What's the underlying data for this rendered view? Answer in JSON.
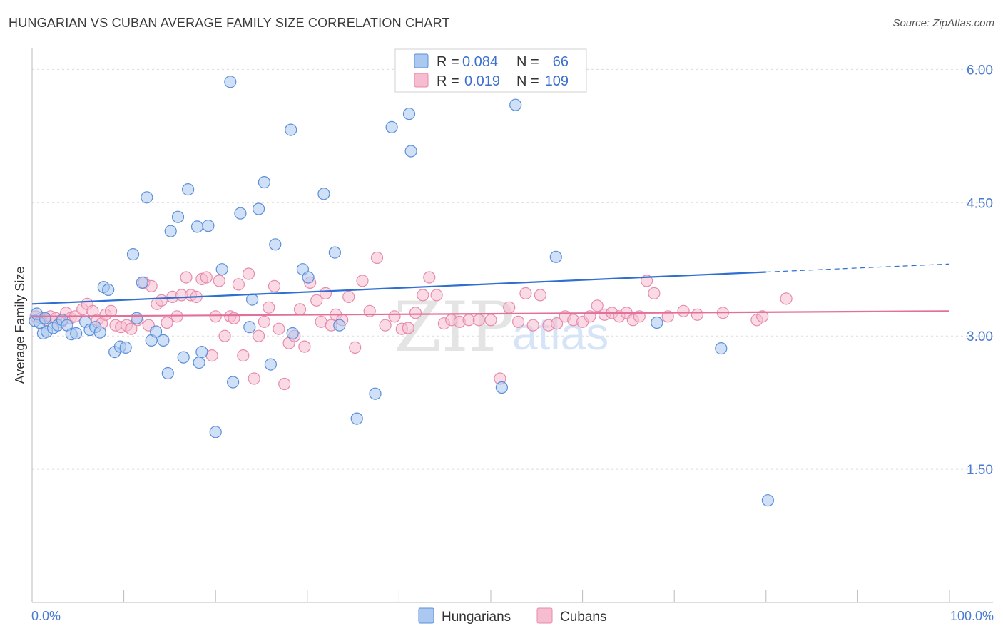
{
  "title": "HUNGARIAN VS CUBAN AVERAGE FAMILY SIZE CORRELATION CHART",
  "source": "Source: ZipAtlas.com",
  "watermark": {
    "zip": "ZIP",
    "atlas": "atlas"
  },
  "colors": {
    "hungarian_fill": "#aac8f0",
    "hungarian_stroke": "#5b8fd9",
    "hungarian_line": "#2f6fd1",
    "cuban_fill": "#f6bdd0",
    "cuban_stroke": "#e88aab",
    "cuban_line": "#e2709a",
    "tick_label": "#4a7bd0"
  },
  "legend": {
    "r_label": "R =",
    "n_label": "N =",
    "hungarian": {
      "r": "0.084",
      "n": "66"
    },
    "cuban": {
      "r": "0.019",
      "n": "109"
    }
  },
  "bottom_legend": {
    "hungarians": "Hungarians",
    "cubans": "Cubans"
  },
  "chart_data": {
    "type": "scatter",
    "title": "HUNGARIAN VS CUBAN AVERAGE FAMILY SIZE CORRELATION CHART",
    "xlabel": "",
    "ylabel": "Average Family Size",
    "xlim": [
      0,
      100
    ],
    "ylim": [
      0.0,
      6.3
    ],
    "x_tick_labels": {
      "min": "0.0%",
      "max": "100.0%"
    },
    "y_ticks": [
      {
        "value": 1.5,
        "label": "1.50"
      },
      {
        "value": 3.0,
        "label": "3.00"
      },
      {
        "value": 4.5,
        "label": "4.50"
      },
      {
        "value": 6.0,
        "label": "6.00"
      }
    ],
    "series": [
      {
        "name": "Hungarians",
        "r": 0.084,
        "n": 66,
        "trend": {
          "x0": 0,
          "y0": 3.36,
          "x1": 80,
          "y1": 3.72,
          "dash_to_x": 100,
          "dash_to_y": 3.81
        },
        "points": [
          [
            0.3,
            3.17
          ],
          [
            0.8,
            3.15
          ],
          [
            1.2,
            3.03
          ],
          [
            1.6,
            3.05
          ],
          [
            2.3,
            3.09
          ],
          [
            2.8,
            3.12
          ],
          [
            3.3,
            3.18
          ],
          [
            3.8,
            3.12
          ],
          [
            4.3,
            3.02
          ],
          [
            4.8,
            3.03
          ],
          [
            5.8,
            3.16
          ],
          [
            6.3,
            3.07
          ],
          [
            6.9,
            3.1
          ],
          [
            7.4,
            3.04
          ],
          [
            7.8,
            3.55
          ],
          [
            8.3,
            3.52
          ],
          [
            9.0,
            2.82
          ],
          [
            9.6,
            2.88
          ],
          [
            10.2,
            2.87
          ],
          [
            11.0,
            3.92
          ],
          [
            11.4,
            3.2
          ],
          [
            12.0,
            3.6
          ],
          [
            12.5,
            4.56
          ],
          [
            13.0,
            2.95
          ],
          [
            13.5,
            3.05
          ],
          [
            14.3,
            2.95
          ],
          [
            14.8,
            2.58
          ],
          [
            15.1,
            4.18
          ],
          [
            15.9,
            4.34
          ],
          [
            16.5,
            2.76
          ],
          [
            17.0,
            4.65
          ],
          [
            18.0,
            4.23
          ],
          [
            18.2,
            2.7
          ],
          [
            18.5,
            2.82
          ],
          [
            19.2,
            4.24
          ],
          [
            20.0,
            1.92
          ],
          [
            20.7,
            3.75
          ],
          [
            21.6,
            5.86
          ],
          [
            21.9,
            2.48
          ],
          [
            22.7,
            4.38
          ],
          [
            23.7,
            3.1
          ],
          [
            24.0,
            3.41
          ],
          [
            24.7,
            4.43
          ],
          [
            25.3,
            4.73
          ],
          [
            26.0,
            2.68
          ],
          [
            26.5,
            4.03
          ],
          [
            28.2,
            5.32
          ],
          [
            28.4,
            3.03
          ],
          [
            29.5,
            3.75
          ],
          [
            30.1,
            3.66
          ],
          [
            31.8,
            4.6
          ],
          [
            33.0,
            3.94
          ],
          [
            33.5,
            3.12
          ],
          [
            35.4,
            2.07
          ],
          [
            37.4,
            2.35
          ],
          [
            39.2,
            5.35
          ],
          [
            41.1,
            5.5
          ],
          [
            41.3,
            5.08
          ],
          [
            51.2,
            2.42
          ],
          [
            52.7,
            5.6
          ],
          [
            57.1,
            3.89
          ],
          [
            68.1,
            3.15
          ],
          [
            75.1,
            2.86
          ],
          [
            80.2,
            1.15
          ],
          [
            0.5,
            3.25
          ],
          [
            1.4,
            3.2
          ]
        ]
      },
      {
        "name": "Cubans",
        "r": 0.019,
        "n": 109,
        "trend": {
          "x0": 0,
          "y0": 3.22,
          "x1": 100,
          "y1": 3.28
        },
        "points": [
          [
            0.4,
            3.22
          ],
          [
            1.0,
            3.2
          ],
          [
            1.5,
            3.18
          ],
          [
            2.0,
            3.22
          ],
          [
            2.6,
            3.2
          ],
          [
            3.2,
            3.16
          ],
          [
            3.7,
            3.26
          ],
          [
            4.2,
            3.2
          ],
          [
            4.7,
            3.22
          ],
          [
            5.5,
            3.3
          ],
          [
            6.0,
            3.36
          ],
          [
            6.6,
            3.28
          ],
          [
            7.1,
            3.18
          ],
          [
            7.6,
            3.14
          ],
          [
            8.0,
            3.24
          ],
          [
            8.6,
            3.28
          ],
          [
            9.1,
            3.12
          ],
          [
            9.7,
            3.1
          ],
          [
            10.3,
            3.12
          ],
          [
            10.8,
            3.08
          ],
          [
            11.5,
            3.18
          ],
          [
            12.2,
            3.6
          ],
          [
            12.7,
            3.12
          ],
          [
            13.0,
            3.56
          ],
          [
            13.6,
            3.36
          ],
          [
            14.1,
            3.4
          ],
          [
            14.7,
            3.15
          ],
          [
            15.3,
            3.44
          ],
          [
            15.8,
            3.22
          ],
          [
            16.3,
            3.46
          ],
          [
            16.8,
            3.66
          ],
          [
            17.3,
            3.46
          ],
          [
            17.9,
            3.44
          ],
          [
            18.5,
            3.64
          ],
          [
            19.0,
            3.66
          ],
          [
            19.6,
            2.78
          ],
          [
            20.0,
            3.22
          ],
          [
            20.4,
            3.62
          ],
          [
            21.0,
            3.0
          ],
          [
            21.6,
            3.22
          ],
          [
            22.0,
            3.2
          ],
          [
            22.5,
            3.58
          ],
          [
            23.0,
            2.78
          ],
          [
            23.6,
            3.7
          ],
          [
            24.2,
            2.52
          ],
          [
            24.7,
            3.0
          ],
          [
            25.3,
            3.16
          ],
          [
            25.8,
            3.32
          ],
          [
            26.4,
            3.56
          ],
          [
            26.9,
            3.08
          ],
          [
            27.5,
            2.46
          ],
          [
            28.0,
            2.92
          ],
          [
            28.6,
            3.0
          ],
          [
            29.2,
            3.3
          ],
          [
            29.7,
            2.88
          ],
          [
            30.3,
            3.6
          ],
          [
            31.0,
            3.4
          ],
          [
            31.5,
            3.16
          ],
          [
            32.0,
            3.48
          ],
          [
            32.6,
            3.12
          ],
          [
            33.1,
            3.24
          ],
          [
            33.8,
            3.18
          ],
          [
            34.5,
            3.44
          ],
          [
            35.2,
            2.87
          ],
          [
            36.0,
            3.62
          ],
          [
            36.8,
            3.28
          ],
          [
            37.6,
            3.88
          ],
          [
            38.5,
            3.12
          ],
          [
            39.5,
            3.22
          ],
          [
            40.3,
            3.08
          ],
          [
            41.0,
            3.09
          ],
          [
            41.8,
            3.26
          ],
          [
            42.6,
            3.46
          ],
          [
            43.3,
            3.66
          ],
          [
            44.1,
            3.46
          ],
          [
            44.9,
            3.14
          ],
          [
            45.7,
            3.18
          ],
          [
            46.6,
            3.16
          ],
          [
            47.6,
            3.18
          ],
          [
            48.7,
            3.18
          ],
          [
            50.0,
            3.18
          ],
          [
            51.0,
            2.52
          ],
          [
            52.0,
            3.32
          ],
          [
            53.0,
            3.16
          ],
          [
            53.8,
            3.48
          ],
          [
            54.6,
            3.12
          ],
          [
            55.4,
            3.46
          ],
          [
            56.3,
            3.12
          ],
          [
            57.2,
            3.14
          ],
          [
            58.1,
            3.22
          ],
          [
            59.0,
            3.18
          ],
          [
            60.0,
            3.16
          ],
          [
            60.8,
            3.22
          ],
          [
            61.6,
            3.34
          ],
          [
            62.4,
            3.24
          ],
          [
            63.2,
            3.26
          ],
          [
            64.0,
            3.22
          ],
          [
            64.8,
            3.26
          ],
          [
            65.5,
            3.18
          ],
          [
            66.2,
            3.22
          ],
          [
            67.0,
            3.62
          ],
          [
            67.8,
            3.48
          ],
          [
            69.3,
            3.22
          ],
          [
            71.0,
            3.28
          ],
          [
            72.5,
            3.24
          ],
          [
            75.3,
            3.26
          ],
          [
            79.0,
            3.18
          ],
          [
            79.6,
            3.22
          ],
          [
            82.2,
            3.42
          ]
        ]
      }
    ]
  },
  "ui_text": {
    "ylabel": "Average Family Size"
  }
}
